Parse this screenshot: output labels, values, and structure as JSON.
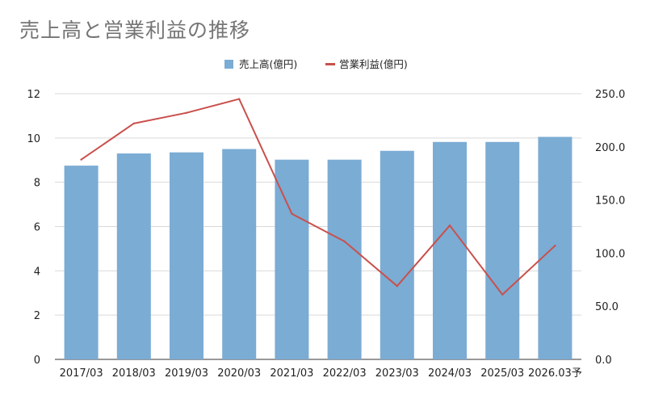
{
  "chart_data": {
    "type": "bar",
    "title": "売上高と営業利益の推移",
    "categories": [
      "2017/03",
      "2018/03",
      "2019/03",
      "2020/03",
      "2021/03",
      "2022/03",
      "2023/03",
      "2024/03",
      "2025/03",
      "2026.03予"
    ],
    "series": [
      {
        "name": "売上高(億円)",
        "type": "bar",
        "axis": "left",
        "color": "#7BACD4",
        "values": [
          8.75,
          9.3,
          9.35,
          9.5,
          9.02,
          9.02,
          9.42,
          9.82,
          9.82,
          10.05
        ]
      },
      {
        "name": "営業利益(億円)",
        "type": "line",
        "axis": "right",
        "color": "#C9504C",
        "values": [
          188,
          222,
          232,
          245,
          137,
          111,
          69,
          126,
          61,
          107
        ]
      }
    ],
    "y_left": {
      "min": 0,
      "max": 12,
      "ticks": [
        "0",
        "2",
        "4",
        "6",
        "8",
        "10",
        "12"
      ]
    },
    "y_right": {
      "min": 0,
      "max": 250,
      "ticks": [
        "0.0",
        "50.0",
        "100.0",
        "150.0",
        "200.0",
        "250.0"
      ]
    },
    "grid": true,
    "legend_position": "top-center"
  }
}
